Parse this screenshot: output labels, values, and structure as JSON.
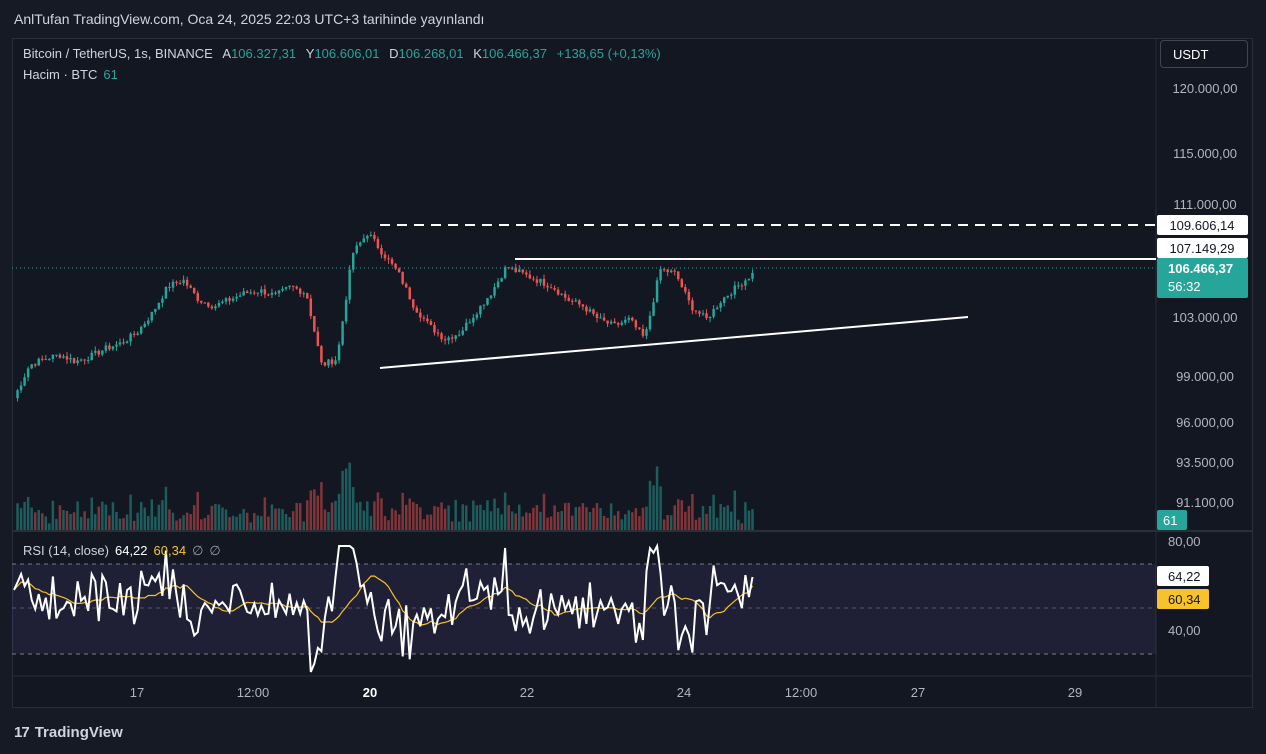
{
  "header": {
    "published": "AnlTufan TradingView.com, Oca 24, 2025 22:03 UTC+3 tarihinde yayınlandı"
  },
  "legend": {
    "symbol": "Bitcoin / TetherUS, 1s, BINANCE",
    "open_label": "A",
    "open": "106.327,31",
    "high_label": "Y",
    "high": "106.606,01",
    "low_label": "D",
    "low": "106.268,01",
    "close_label": "K",
    "close": "106.466,37",
    "change": "+138,65 (+0,13%)"
  },
  "volume_legend": {
    "label": "Hacim · BTC",
    "value": "61"
  },
  "rsi_legend": {
    "label": "RSI (14, close)",
    "rsi": "64,22",
    "ma": "60,34",
    "extra1": "∅",
    "extra2": "∅"
  },
  "currency": "USDT",
  "price_axis": [
    "120.000,00",
    "115.000,00",
    "111.000,00",
    "103.000,00",
    "99.000,00",
    "96.000,00",
    "93.500,00",
    "91.100,00"
  ],
  "price_tags": {
    "resistance_dashed": "109.606,14",
    "resistance": "107.149,29",
    "last_price": "106.466,37",
    "countdown": "56:32",
    "volume": "61"
  },
  "rsi_axis": [
    "80,00",
    "40,00"
  ],
  "rsi_tags": {
    "rsi": "64,22",
    "ma": "60,34"
  },
  "time_axis": [
    "17",
    "12:00",
    "20",
    "22",
    "24",
    "12:00",
    "27",
    "29"
  ],
  "footer": {
    "brand": "TradingView",
    "logo": "17"
  },
  "colors": {
    "up": "#26a69a",
    "down": "#ef5350",
    "rsi": "#ffffff",
    "rsi_ma": "#f7c22b",
    "background": "#131722"
  },
  "chart_data": {
    "type": "candlestick",
    "symbol": "BTCUSDT",
    "timeframe": "1h",
    "ylim": [
      90000,
      122000
    ],
    "series": [
      {
        "name": "price_path_approx",
        "values": [
          97000,
          99500,
          100000,
          100300,
          99800,
          100200,
          100800,
          101200,
          102000,
          103500,
          105500,
          106000,
          104500,
          104000,
          104500,
          105000,
          105200,
          104800,
          105500,
          105000,
          99500,
          100000,
          108000,
          109600,
          108000,
          106500,
          104000,
          102500,
          101500,
          102000,
          103500,
          105000,
          107000,
          106500,
          106000,
          105500,
          104500,
          104000,
          103000,
          102500,
          103000,
          101500,
          106800,
          106500,
          104000,
          103000,
          104500,
          105500,
          106466
        ]
      }
    ],
    "volume": {
      "name": "Hacim · BTC",
      "last": 61
    },
    "rsi": {
      "name": "RSI (14, close)",
      "last": 64.22,
      "ma_last": 60.34,
      "upper": 70,
      "middle": 50,
      "lower": 30
    },
    "annotations": [
      {
        "type": "horizontal-dashed",
        "price": 109606.14
      },
      {
        "type": "horizontal",
        "price": 107149.29
      },
      {
        "type": "ascending-trendline",
        "from_price": 100000,
        "to_price": 103000
      }
    ]
  }
}
